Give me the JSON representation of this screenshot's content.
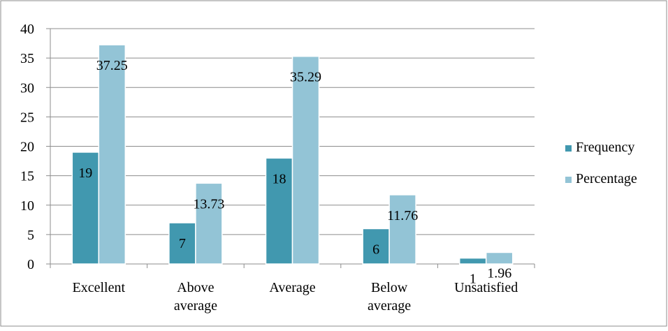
{
  "chart_data": {
    "type": "bar",
    "title": "",
    "xlabel": "",
    "ylabel": "",
    "categories": [
      [
        "Excellent"
      ],
      [
        "Above",
        "average"
      ],
      [
        "Average"
      ],
      [
        "Below",
        "average"
      ],
      [
        "Unsatisfied"
      ]
    ],
    "series": [
      {
        "name": "Frequency",
        "color": "#4198AF",
        "values": [
          19,
          7,
          18,
          6,
          1
        ],
        "labels": [
          "19",
          "7",
          "18",
          "6",
          "1"
        ]
      },
      {
        "name": "Percentage",
        "color": "#93C4D6",
        "values": [
          37.25,
          13.73,
          35.29,
          11.76,
          1.96
        ],
        "labels": [
          "37.25",
          "13.73",
          "35.29",
          "11.76",
          "1.96"
        ]
      }
    ],
    "ylim": [
      0,
      40
    ],
    "yticks": [
      0,
      5,
      10,
      15,
      20,
      25,
      30,
      35,
      40
    ],
    "grid": true,
    "legend_position": "right"
  }
}
